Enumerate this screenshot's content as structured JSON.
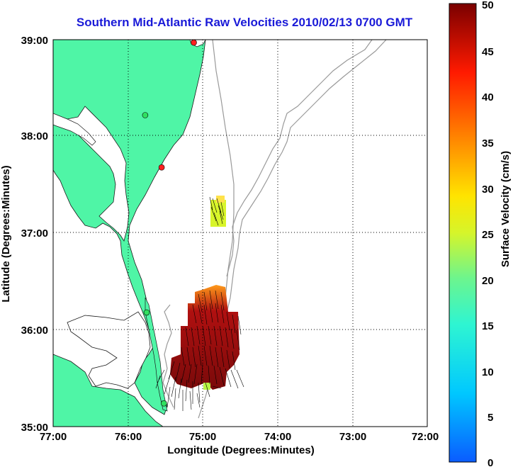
{
  "title": "Southern Mid-Atlantic Raw Velocities 2010/02/13 0700 GMT",
  "x_axis": {
    "label": "Longitude (Degrees:Minutes)",
    "ticks": [
      "77:00",
      "76:00",
      "75:00",
      "74:00",
      "73:00",
      "72:00"
    ]
  },
  "y_axis": {
    "label": "Latitude (Degrees:Minutes)",
    "ticks": [
      "39:00",
      "38:00",
      "37:00",
      "36:00",
      "35:00"
    ]
  },
  "colorbar": {
    "label": "Surface Velocity (cm/s)",
    "min": 0,
    "max": 50,
    "ticks": [
      "50",
      "45",
      "40",
      "35",
      "30",
      "25",
      "20",
      "15",
      "10",
      "5",
      "0"
    ]
  },
  "map_extent": {
    "lon_range": [
      -77,
      -72
    ],
    "lat_range": [
      35,
      39
    ]
  },
  "colors": {
    "land": "#4ff5a6",
    "title": "#1a1ad8",
    "bathymetry": "#9a9a9a"
  },
  "stations": [
    {
      "lon": -75.12,
      "lat": 38.97,
      "status": "red"
    },
    {
      "lon": -75.77,
      "lat": 38.22,
      "status": "green"
    },
    {
      "lon": -75.55,
      "lat": 37.68,
      "status": "red"
    },
    {
      "lon": -75.75,
      "lat": 36.18,
      "status": "green"
    },
    {
      "lon": -75.52,
      "lat": 35.24,
      "status": "green"
    }
  ]
}
